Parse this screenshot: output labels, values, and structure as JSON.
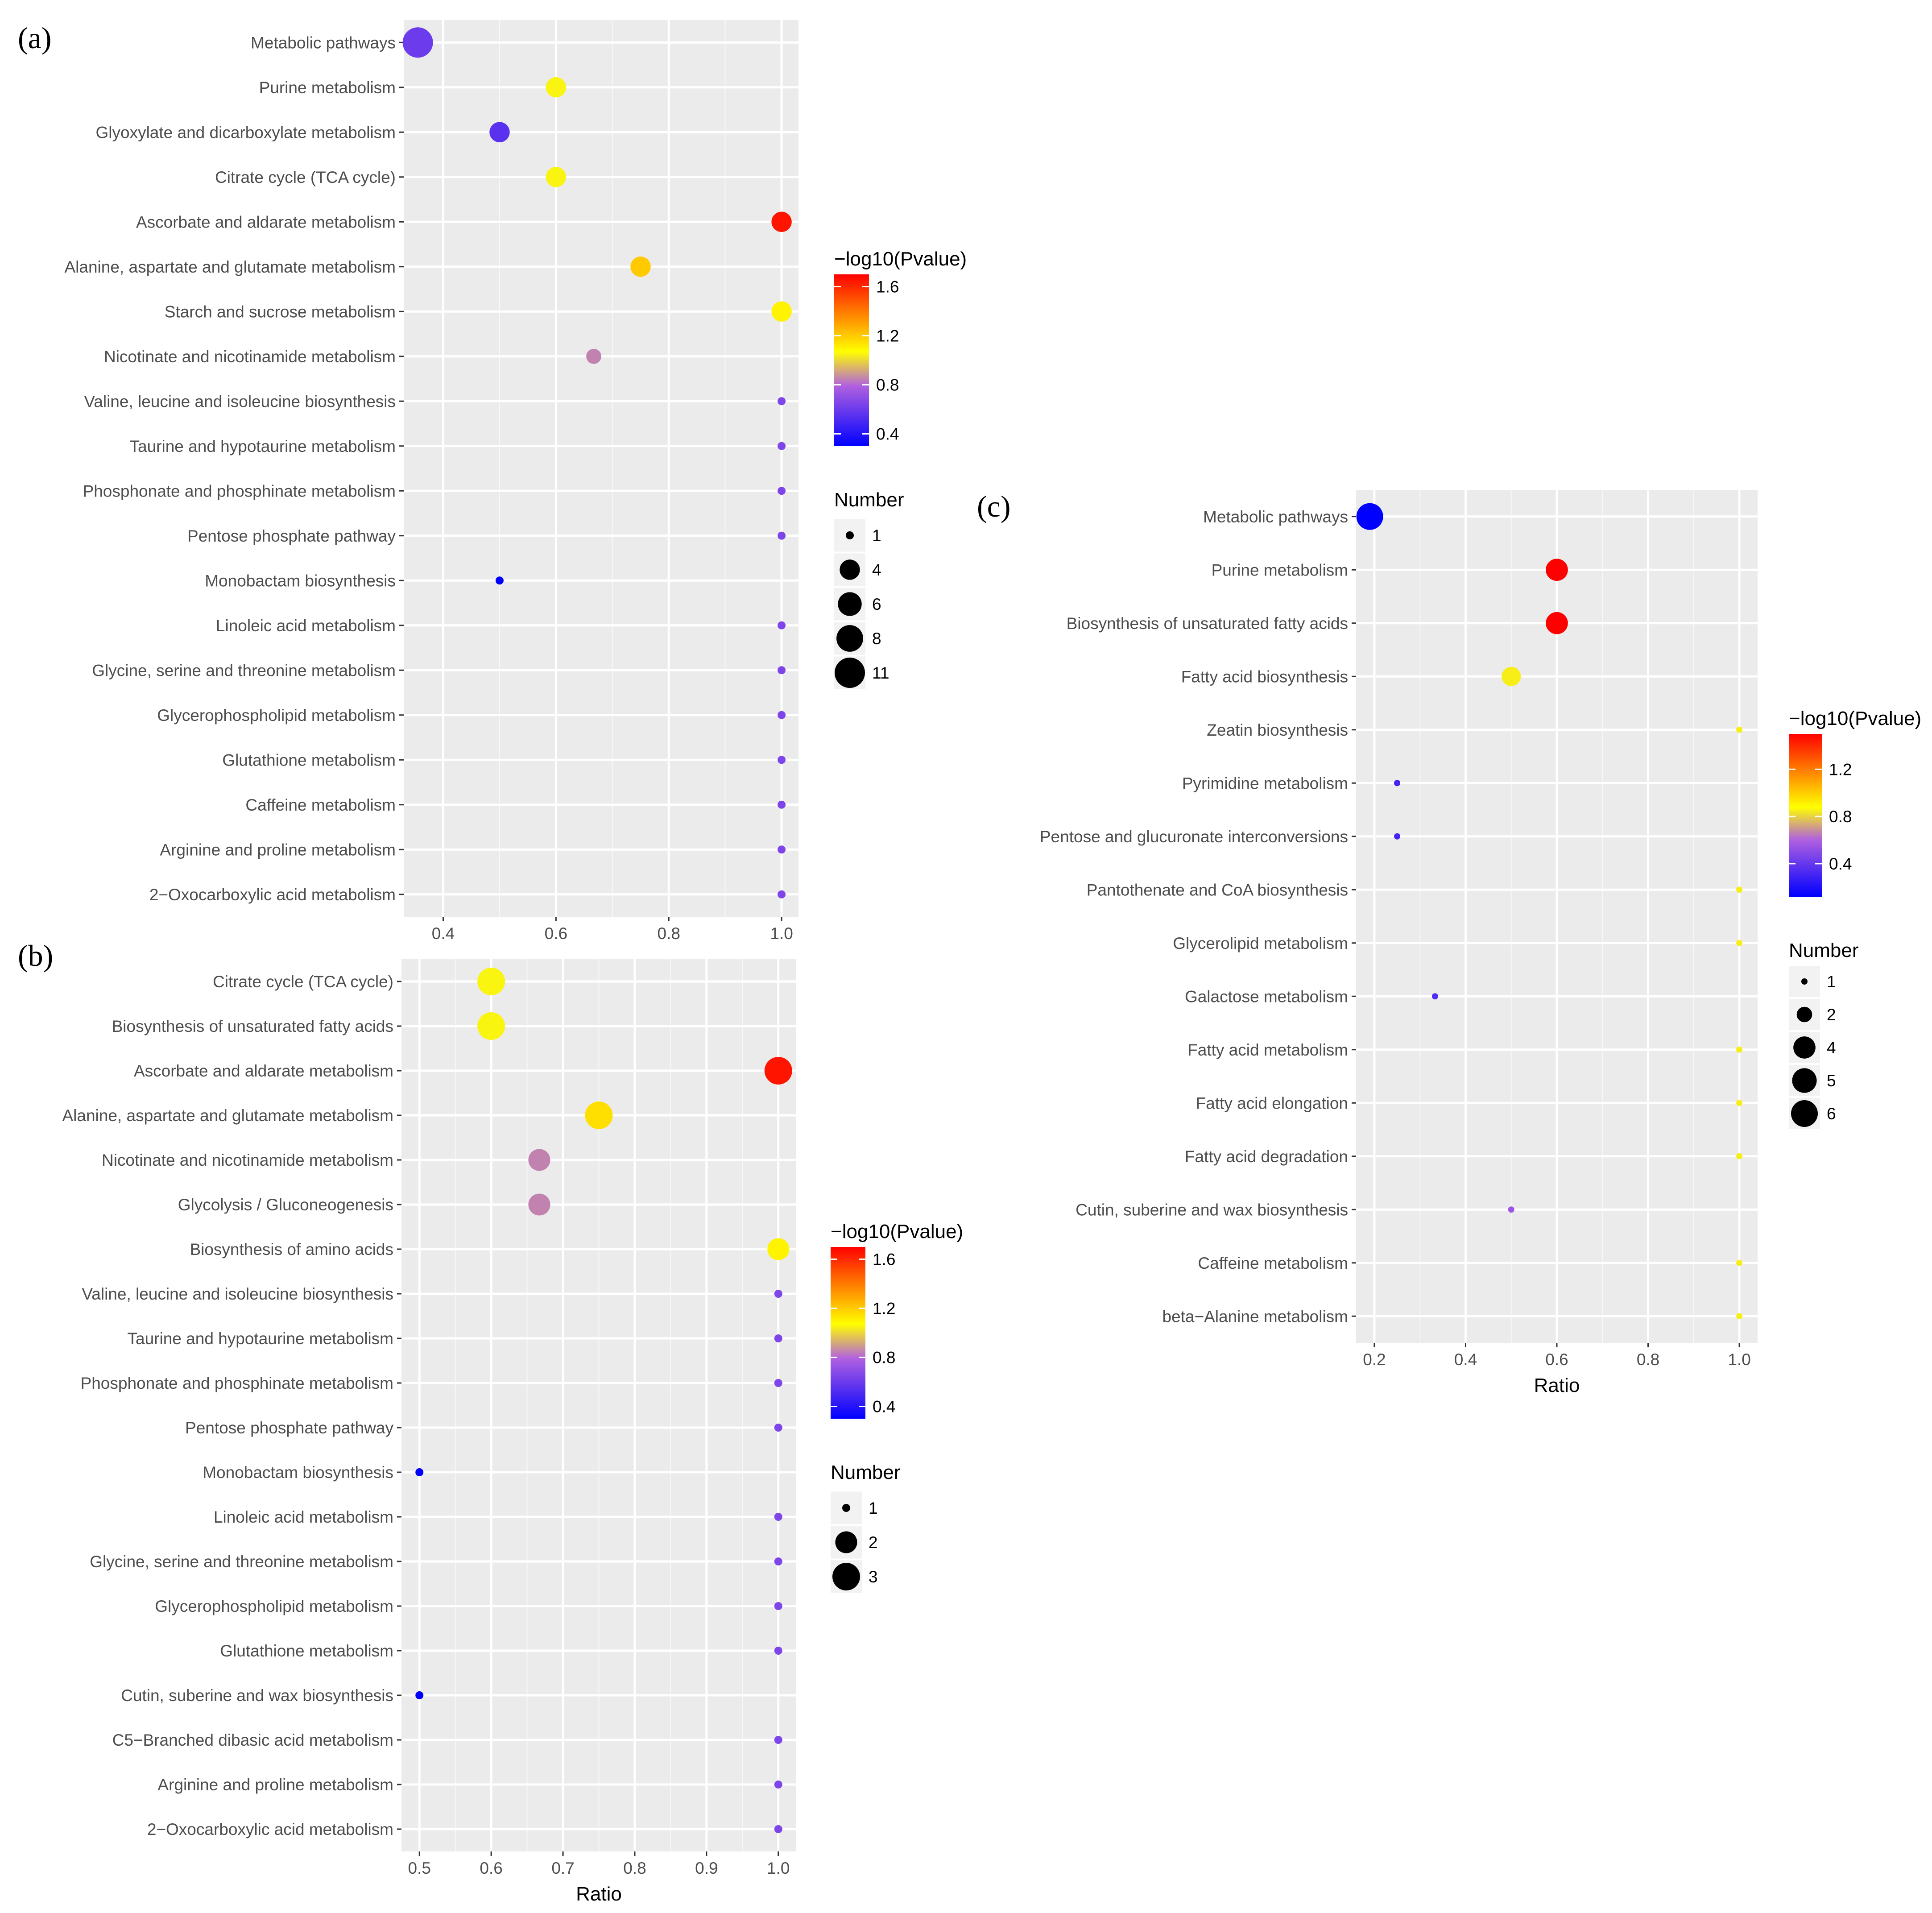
{
  "chart_data": [
    {
      "type": "scatter",
      "panel_label": "(a)",
      "xlabel": "",
      "ylabel": "",
      "xlim": [
        0.33,
        1.03
      ],
      "xticks": [
        0.4,
        0.6,
        0.8,
        1.0
      ],
      "xtick_labels": [
        "0.4",
        "0.6",
        "0.8",
        "1.0"
      ],
      "categories": [
        "Metabolic pathways",
        "Purine metabolism",
        "Glyoxylate and dicarboxylate metabolism",
        "Citrate cycle (TCA cycle)",
        "Ascorbate and aldarate metabolism",
        "Alanine, aspartate and glutamate metabolism",
        "Starch and sucrose metabolism",
        "Nicotinate and nicotinamide metabolism",
        "Valine, leucine and isoleucine biosynthesis",
        "Taurine and hypotaurine metabolism",
        "Phosphonate and phosphinate metabolism",
        "Pentose phosphate pathway",
        "Monobactam biosynthesis",
        "Linoleic acid metabolism",
        "Glycine, serine and threonine metabolism",
        "Glycerophospholipid metabolism",
        "Glutathione metabolism",
        "Caffeine metabolism",
        "Arginine and proline metabolism",
        "2−Oxocarboxylic acid metabolism"
      ],
      "ratio": [
        0.355,
        0.6,
        0.5,
        0.6,
        1.0,
        0.75,
        1.0,
        0.667,
        1.0,
        1.0,
        1.0,
        1.0,
        0.5,
        1.0,
        1.0,
        1.0,
        1.0,
        1.0,
        1.0,
        1.0
      ],
      "number": [
        11,
        4,
        4,
        4,
        4,
        4,
        4,
        2,
        1,
        1,
        1,
        1,
        1,
        1,
        1,
        1,
        1,
        1,
        1,
        1
      ],
      "neg_log10_pvalue": [
        0.6,
        1.05,
        0.55,
        1.05,
        1.65,
        1.2,
        1.1,
        0.85,
        0.65,
        0.65,
        0.65,
        0.65,
        0.3,
        0.65,
        0.65,
        0.65,
        0.65,
        0.65,
        0.65,
        0.65
      ],
      "color_legend": {
        "title": "−log10(Pvalue)",
        "min": 0.3,
        "max": 1.7,
        "ticks": [
          "1.6",
          "1.2",
          "0.8",
          "0.4"
        ],
        "tick_values": [
          1.6,
          1.2,
          0.8,
          0.4
        ]
      },
      "size_legend": {
        "title": "Number",
        "labels": [
          "1",
          "4",
          "6",
          "8",
          "11"
        ],
        "values": [
          1,
          4,
          6,
          8,
          11
        ]
      }
    },
    {
      "type": "scatter",
      "panel_label": "(b)",
      "xlabel": "Ratio",
      "ylabel": "",
      "xlim": [
        0.475,
        1.025
      ],
      "xticks": [
        0.5,
        0.6,
        0.7,
        0.8,
        0.9,
        1.0
      ],
      "xtick_labels": [
        "0.5",
        "0.6",
        "0.7",
        "0.8",
        "0.9",
        "1.0"
      ],
      "categories": [
        "Citrate cycle (TCA cycle)",
        "Biosynthesis of unsaturated fatty acids",
        "Ascorbate and aldarate metabolism",
        "Alanine, aspartate and glutamate metabolism",
        "Nicotinate and nicotinamide metabolism",
        "Glycolysis / Gluconeogenesis",
        "Biosynthesis of amino acids",
        "Valine, leucine and isoleucine biosynthesis",
        "Taurine and hypotaurine metabolism",
        "Phosphonate and phosphinate metabolism",
        "Pentose phosphate pathway",
        "Monobactam biosynthesis",
        "Linoleic acid metabolism",
        "Glycine, serine and threonine metabolism",
        "Glycerophospholipid metabolism",
        "Glutathione metabolism",
        "Cutin, suberine and wax biosynthesis",
        "C5−Branched dibasic acid metabolism",
        "Arginine and proline metabolism",
        "2−Oxocarboxylic acid metabolism"
      ],
      "ratio": [
        0.6,
        0.6,
        1.0,
        0.75,
        0.667,
        0.667,
        1.0,
        1.0,
        1.0,
        1.0,
        1.0,
        0.5,
        1.0,
        1.0,
        1.0,
        1.0,
        0.5,
        1.0,
        1.0,
        1.0
      ],
      "number": [
        3,
        3,
        3,
        3,
        2,
        2,
        2,
        1,
        1,
        1,
        1,
        1,
        1,
        1,
        1,
        1,
        1,
        1,
        1,
        1
      ],
      "neg_log10_pvalue": [
        1.05,
        1.05,
        1.65,
        1.15,
        0.85,
        0.85,
        1.1,
        0.65,
        0.65,
        0.65,
        0.65,
        0.3,
        0.65,
        0.65,
        0.65,
        0.65,
        0.3,
        0.65,
        0.65,
        0.65
      ],
      "color_legend": {
        "title": "−log10(Pvalue)",
        "min": 0.3,
        "max": 1.7,
        "ticks": [
          "1.6",
          "1.2",
          "0.8",
          "0.4"
        ],
        "tick_values": [
          1.6,
          1.2,
          0.8,
          0.4
        ]
      },
      "size_legend": {
        "title": "Number",
        "labels": [
          "1",
          "2",
          "3"
        ],
        "values": [
          1,
          2,
          3
        ]
      }
    },
    {
      "type": "scatter",
      "panel_label": "(c)",
      "xlabel": "Ratio",
      "ylabel": "",
      "xlim": [
        0.16,
        1.04
      ],
      "xticks": [
        0.2,
        0.4,
        0.6,
        0.8,
        1.0
      ],
      "xtick_labels": [
        "0.2",
        "0.4",
        "0.6",
        "0.8",
        "1.0"
      ],
      "categories": [
        "Metabolic pathways",
        "Purine metabolism",
        "Biosynthesis of unsaturated fatty acids",
        "Fatty acid biosynthesis",
        "Zeatin biosynthesis",
        "Pyrimidine metabolism",
        "Pentose and glucuronate interconversions",
        "Pantothenate and CoA biosynthesis",
        "Glycerolipid metabolism",
        "Galactose metabolism",
        "Fatty acid metabolism",
        "Fatty acid elongation",
        "Fatty acid degradation",
        "Cutin, suberine and wax biosynthesis",
        "Caffeine metabolism",
        "beta−Alanine metabolism"
      ],
      "ratio": [
        0.19,
        0.6,
        0.6,
        0.5,
        1.0,
        0.25,
        0.25,
        1.0,
        1.0,
        0.333,
        1.0,
        1.0,
        1.0,
        0.5,
        1.0,
        1.0
      ],
      "number": [
        6,
        4,
        4,
        3,
        1,
        1,
        1,
        1,
        1,
        1,
        1,
        1,
        1,
        1,
        1,
        1
      ],
      "neg_log10_pvalue": [
        0.12,
        1.5,
        1.5,
        0.85,
        0.85,
        0.3,
        0.3,
        0.85,
        0.85,
        0.35,
        0.85,
        0.85,
        0.85,
        0.55,
        0.85,
        0.85
      ],
      "color_legend": {
        "title": "−log10(Pvalue)",
        "min": 0.12,
        "max": 1.5,
        "ticks": [
          "1.2",
          "0.8",
          "0.4"
        ],
        "tick_values": [
          1.2,
          0.8,
          0.4
        ]
      },
      "size_legend": {
        "title": "Number",
        "labels": [
          "1",
          "2",
          "4",
          "5",
          "6"
        ],
        "values": [
          1,
          2,
          4,
          5,
          6
        ]
      }
    }
  ]
}
